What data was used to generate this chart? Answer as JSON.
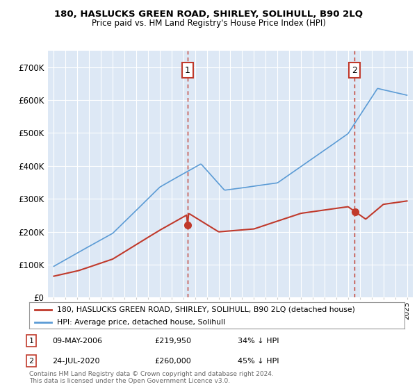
{
  "title": "180, HASLUCKS GREEN ROAD, SHIRLEY, SOLIHULL, B90 2LQ",
  "subtitle": "Price paid vs. HM Land Registry's House Price Index (HPI)",
  "ylim": [
    0,
    750000
  ],
  "yticks": [
    0,
    100000,
    200000,
    300000,
    400000,
    500000,
    600000,
    700000
  ],
  "ytick_labels": [
    "£0",
    "£100K",
    "£200K",
    "£300K",
    "£400K",
    "£500K",
    "£600K",
    "£700K"
  ],
  "background_color": "#ffffff",
  "plot_bg_color": "#dde8f5",
  "grid_color": "#ffffff",
  "hpi_color": "#5b9bd5",
  "price_color": "#c0392b",
  "marker1_date": 2006.37,
  "marker1_price": 219950,
  "marker2_date": 2020.55,
  "marker2_price": 260000,
  "legend_line1": "180, HASLUCKS GREEN ROAD, SHIRLEY, SOLIHULL, B90 2LQ (detached house)",
  "legend_line2": "HPI: Average price, detached house, Solihull",
  "footer": "Contains HM Land Registry data © Crown copyright and database right 2024.\nThis data is licensed under the Open Government Licence v3.0.",
  "xstart": 1994.5,
  "xend": 2025.5
}
